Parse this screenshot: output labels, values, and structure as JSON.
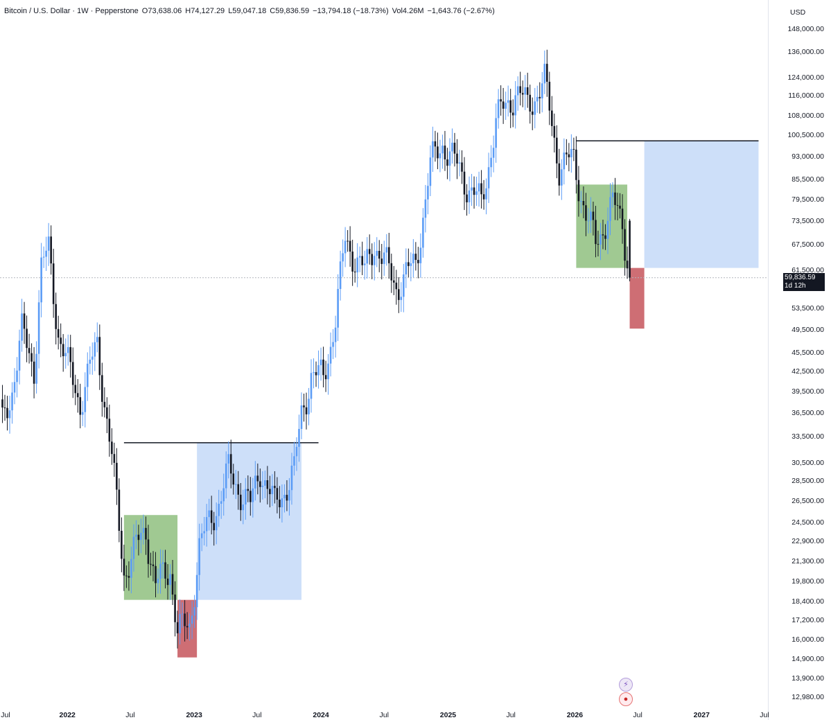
{
  "legend": {
    "symbol": "Bitcoin / U.S. Dollar · 1W · Pepperstone",
    "open": "O73,638.06",
    "high": "H74,127.29",
    "low": "L59,047.18",
    "close": "C59,836.59",
    "change": "−13,794.18 (−18.73%)",
    "volume": "Vol4.26M",
    "volume_change": "−1,643.76 (−2.67%)"
  },
  "currency": "USD",
  "last_price": {
    "value": "59,836.59",
    "countdown": "1d 12h",
    "price": 59836.59
  },
  "y_axis_labels": [
    "148,000.00",
    "136,000.00",
    "124,000.00",
    "116,000.00",
    "108,000.00",
    "100,500.00",
    "93,000.00",
    "85,500.00",
    "79,500.00",
    "73,500.00",
    "67,500.00",
    "61,500.00",
    "53,500.00",
    "49,500.00",
    "45,500.00",
    "42,500.00",
    "39,500.00",
    "36,500.00",
    "33,500.00",
    "30,500.00",
    "28,500.00",
    "26,500.00",
    "24,500.00",
    "22,900.00",
    "21,300.00",
    "19,800.00",
    "18,400.00",
    "17,200.00",
    "16,000.00",
    "14,900.00",
    "13,900.00",
    "12,980.00"
  ],
  "x_axis_labels": [
    {
      "text": "Jul",
      "year": false
    },
    {
      "text": "2022",
      "year": true
    },
    {
      "text": "Jul",
      "year": false
    },
    {
      "text": "2023",
      "year": true
    },
    {
      "text": "Jul",
      "year": false
    },
    {
      "text": "2024",
      "year": true
    },
    {
      "text": "Jul",
      "year": false
    },
    {
      "text": "2025",
      "year": true
    },
    {
      "text": "Jul",
      "year": false
    },
    {
      "text": "2026",
      "year": true
    },
    {
      "text": "Jul",
      "year": false
    },
    {
      "text": "2027",
      "year": true
    },
    {
      "text": "Jul",
      "year": false
    }
  ],
  "colors": {
    "up": "#5b9cf6",
    "down": "#131722",
    "green_zone": "#8fbf7f",
    "red_zone": "#c5555c",
    "blue_zone": "#c8dcf8",
    "line": "#131722",
    "dotted": "#b2b5be"
  },
  "chart_data": {
    "type": "candlestick",
    "interval": "1W",
    "y_scale": "log",
    "ylim": [
      12500,
      152000
    ],
    "x_range": [
      "2021-07-01",
      "2027-07-01"
    ],
    "series": [
      {
        "date": "2021-06-28",
        "close": 35000,
        "dir": "down"
      },
      {
        "date": "2021-07-26",
        "close": 40000,
        "dir": "up"
      },
      {
        "date": "2021-08-23",
        "close": 49000,
        "dir": "up"
      },
      {
        "date": "2021-09-27",
        "close": 43000,
        "dir": "down"
      },
      {
        "date": "2021-10-18",
        "close": 62000,
        "dir": "up"
      },
      {
        "date": "2021-11-08",
        "close": 66000,
        "dir": "up"
      },
      {
        "date": "2021-12-06",
        "close": 49000,
        "dir": "down"
      },
      {
        "date": "2022-01-10",
        "close": 42000,
        "dir": "down"
      },
      {
        "date": "2022-02-07",
        "close": 38000,
        "dir": "up"
      },
      {
        "date": "2022-03-28",
        "close": 47000,
        "dir": "up"
      },
      {
        "date": "2022-05-09",
        "close": 31000,
        "dir": "down"
      },
      {
        "date": "2022-06-13",
        "close": 20500,
        "dir": "down"
      },
      {
        "date": "2022-07-11",
        "close": 22000,
        "dir": "up"
      },
      {
        "date": "2022-08-15",
        "close": 24000,
        "dir": "up"
      },
      {
        "date": "2022-09-12",
        "close": 19500,
        "dir": "down"
      },
      {
        "date": "2022-10-24",
        "close": 20800,
        "dir": "up"
      },
      {
        "date": "2022-11-14",
        "close": 16500,
        "dir": "down"
      },
      {
        "date": "2022-12-19",
        "close": 16800,
        "dir": "up"
      },
      {
        "date": "2023-01-16",
        "close": 22500,
        "dir": "up"
      },
      {
        "date": "2023-03-13",
        "close": 26500,
        "dir": "up"
      },
      {
        "date": "2023-04-10",
        "close": 29500,
        "dir": "up"
      },
      {
        "date": "2023-06-12",
        "close": 26000,
        "dir": "down"
      },
      {
        "date": "2023-07-10",
        "close": 30000,
        "dir": "up"
      },
      {
        "date": "2023-08-21",
        "close": 26000,
        "dir": "down"
      },
      {
        "date": "2023-10-16",
        "close": 29500,
        "dir": "up"
      },
      {
        "date": "2023-11-06",
        "close": 36500,
        "dir": "up"
      },
      {
        "date": "2023-12-04",
        "close": 42000,
        "dir": "up"
      },
      {
        "date": "2024-01-08",
        "close": 41500,
        "dir": "down"
      },
      {
        "date": "2024-02-12",
        "close": 51500,
        "dir": "up"
      },
      {
        "date": "2024-03-11",
        "close": 68500,
        "dir": "up"
      },
      {
        "date": "2024-05-06",
        "close": 61000,
        "dir": "down"
      },
      {
        "date": "2024-06-03",
        "close": 68000,
        "dir": "up"
      },
      {
        "date": "2024-08-05",
        "close": 58000,
        "dir": "down"
      },
      {
        "date": "2024-09-30",
        "close": 63000,
        "dir": "up"
      },
      {
        "date": "2024-11-11",
        "close": 90000,
        "dir": "up"
      },
      {
        "date": "2024-12-16",
        "close": 98000,
        "dir": "up"
      },
      {
        "date": "2025-03-10",
        "close": 82000,
        "dir": "down"
      },
      {
        "date": "2025-04-07",
        "close": 78000,
        "dir": "down"
      },
      {
        "date": "2025-05-19",
        "close": 106000,
        "dir": "up"
      },
      {
        "date": "2025-07-14",
        "close": 118000,
        "dir": "up"
      },
      {
        "date": "2025-08-18",
        "close": 112000,
        "dir": "down"
      },
      {
        "date": "2025-10-06",
        "close": 122000,
        "dir": "up"
      },
      {
        "date": "2025-11-17",
        "close": 90000,
        "dir": "down"
      },
      {
        "date": "2025-12-29",
        "close": 92000,
        "dir": "up"
      },
      {
        "date": "2026-02-02",
        "close": 75000,
        "dir": "down"
      },
      {
        "date": "2026-03-02",
        "close": 68000,
        "dir": "down"
      },
      {
        "date": "2026-04-20",
        "close": 78000,
        "dir": "up"
      },
      {
        "date": "2026-05-18",
        "close": 73638.06,
        "dir": "down"
      },
      {
        "date": "2026-06-08",
        "open": 73638.06,
        "high": 74127.29,
        "low": 59047.18,
        "close": 59836.59,
        "dir": "down"
      }
    ],
    "zones": [
      {
        "kind": "green",
        "from": "2022-06-13",
        "to": "2022-11-14",
        "top": 25200,
        "bottom": 18500
      },
      {
        "kind": "red",
        "from": "2022-11-14",
        "to": "2023-01-09",
        "top": 18500,
        "bottom": 15000
      },
      {
        "kind": "blue",
        "from": "2023-01-09",
        "to": "2023-11-06",
        "top": 32800,
        "bottom": 18500
      },
      {
        "kind": "green",
        "from": "2026-01-05",
        "to": "2026-06-01",
        "top": 84000,
        "bottom": 62000
      },
      {
        "kind": "red",
        "from": "2026-06-08",
        "to": "2026-07-20",
        "top": 62000,
        "bottom": 49700
      },
      {
        "kind": "blue",
        "from": "2026-07-20",
        "to": "2027-06-14",
        "top": 98500,
        "bottom": 62000
      }
    ],
    "lines": [
      {
        "from": "2022-06-13",
        "to": "2023-12-25",
        "price": 32800
      },
      {
        "from": "2026-01-05",
        "to": "2027-06-14",
        "price": 98500
      }
    ]
  }
}
